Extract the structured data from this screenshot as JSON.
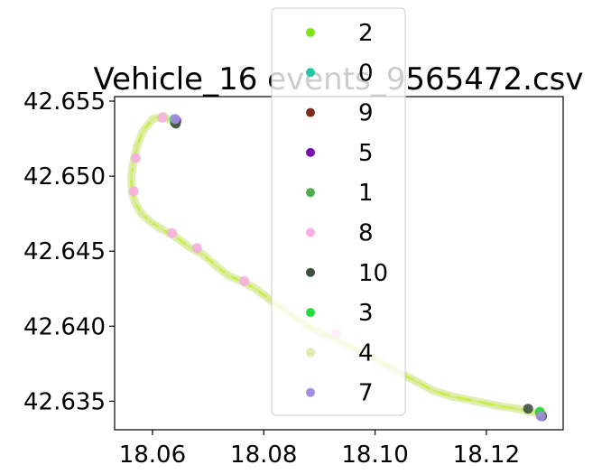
{
  "chart_data": {
    "type": "scatter",
    "title": "Vehicle_16 events_9565472.csv",
    "xlabel": "",
    "ylabel": "",
    "xlim": [
      18.0532,
      18.1338
    ],
    "ylim": [
      42.6331,
      42.6553
    ],
    "x_ticks": [
      "18.06",
      "18.08",
      "18.10",
      "18.12"
    ],
    "x_tick_values": [
      18.06,
      18.08,
      18.1,
      18.12
    ],
    "y_ticks": [
      "42.635",
      "42.640",
      "42.645",
      "42.650",
      "42.655"
    ],
    "y_tick_values": [
      42.635,
      42.64,
      42.645,
      42.65,
      42.655
    ],
    "grid": false,
    "legend_placement": "top-center",
    "series": [
      {
        "name": "2",
        "color": "#7fe51a",
        "points": [
          [
            18.0642,
            42.6537
          ],
          [
            18.1299,
            42.6341
          ]
        ]
      },
      {
        "name": "0",
        "color": "#22c9a5",
        "points": [
          [
            18.064,
            42.6538
          ]
        ]
      },
      {
        "name": "9",
        "color": "#7f2a1e",
        "points": [
          [
            18.0641,
            42.6536
          ]
        ]
      },
      {
        "name": "5",
        "color": "#7a0fb0",
        "points": [
          [
            18.0643,
            42.6537
          ]
        ]
      },
      {
        "name": "1",
        "color": "#4fae4f",
        "points": [
          [
            18.064,
            42.6536
          ],
          [
            18.1297,
            42.6342
          ]
        ]
      },
      {
        "name": "8",
        "color": "#f7aee0",
        "points": [
          [
            18.0618,
            42.6539
          ],
          [
            18.057,
            42.6512
          ],
          [
            18.0566,
            42.649
          ],
          [
            18.0635,
            42.6462
          ],
          [
            18.068,
            42.6452
          ],
          [
            18.0765,
            42.643
          ],
          [
            18.093,
            42.6395
          ]
        ]
      },
      {
        "name": "10",
        "color": "#3f5040",
        "points": [
          [
            18.0642,
            42.6535
          ],
          [
            18.13,
            42.634
          ],
          [
            18.1275,
            42.6345
          ]
        ]
      },
      {
        "name": "3",
        "color": "#2adb3c",
        "points": [
          [
            18.1296,
            42.6343
          ]
        ]
      },
      {
        "name": "4",
        "color": "#dcedae",
        "points": [
          [
            18.0642,
            42.6535
          ],
          [
            18.062,
            42.654
          ],
          [
            18.06,
            42.6538
          ],
          [
            18.0583,
            42.653
          ],
          [
            18.0572,
            42.652
          ],
          [
            18.0565,
            42.6508
          ],
          [
            18.0562,
            42.65
          ],
          [
            18.0563,
            42.649
          ],
          [
            18.0568,
            42.6483
          ],
          [
            18.058,
            42.6475
          ],
          [
            18.0595,
            42.647
          ],
          [
            18.0615,
            42.6465
          ],
          [
            18.064,
            42.646
          ],
          [
            18.0665,
            42.6453
          ],
          [
            18.069,
            42.6448
          ],
          [
            18.0715,
            42.644
          ],
          [
            18.0735,
            42.6434
          ],
          [
            18.076,
            42.643
          ],
          [
            18.0785,
            42.6425
          ],
          [
            18.081,
            42.6418
          ],
          [
            18.084,
            42.641
          ],
          [
            18.087,
            42.6402
          ],
          [
            18.09,
            42.6396
          ],
          [
            18.0935,
            42.639
          ],
          [
            18.097,
            42.6384
          ],
          [
            18.1005,
            42.6377
          ],
          [
            18.104,
            42.637
          ],
          [
            18.1075,
            42.6363
          ],
          [
            18.1105,
            42.6357
          ],
          [
            18.114,
            42.6353
          ],
          [
            18.118,
            42.635
          ],
          [
            18.122,
            42.6347
          ],
          [
            18.1255,
            42.6345
          ],
          [
            18.128,
            42.6343
          ],
          [
            18.13,
            42.6341
          ]
        ]
      },
      {
        "name": "7",
        "color": "#a48ee0",
        "points": [
          [
            18.0641,
            42.6538
          ],
          [
            18.1298,
            42.634
          ]
        ]
      }
    ]
  }
}
